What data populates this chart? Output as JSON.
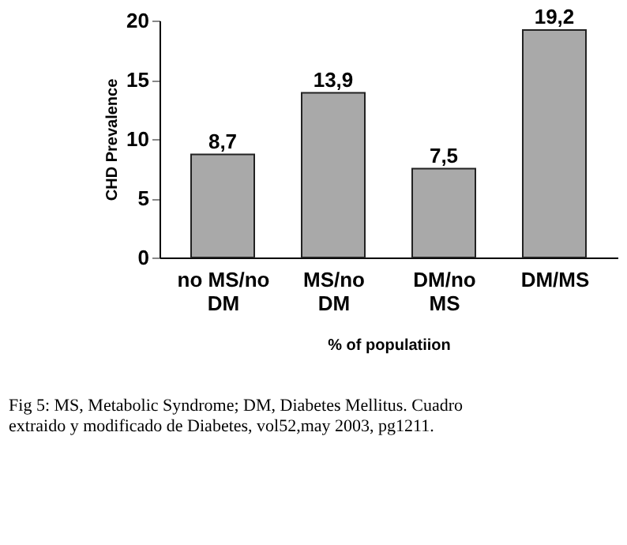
{
  "chart_data": {
    "type": "bar",
    "categories": [
      "no MS/no DM",
      "MS/no DM",
      "DM/no MS",
      "DM/MS"
    ],
    "values": [
      8.7,
      13.9,
      7.5,
      19.2
    ],
    "value_labels": [
      "8,7",
      "13,9",
      "7,5",
      "19,2"
    ],
    "color": "#a9a9a9",
    "ylabel": "CHD Prevalence",
    "xlabel": "% of populatiion",
    "ylim": [
      0,
      20
    ],
    "yticks": [
      0,
      5,
      10,
      15,
      20
    ],
    "grid": false,
    "annotations": [
      "Fig 5: MS,   Metabolic Syndrome; DM,  Diabetes Mellitus.  Cuadro extraido y  modificado de Diabetes, vol52,may 2003, pg1211."
    ]
  }
}
